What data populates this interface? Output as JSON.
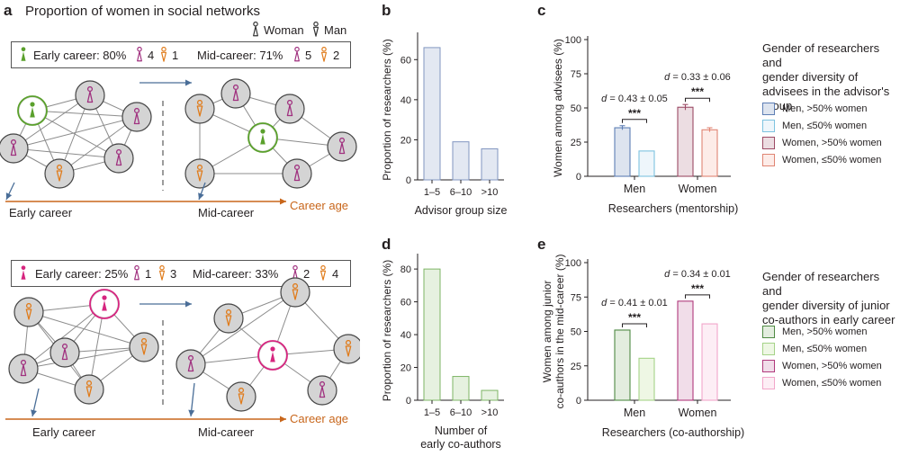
{
  "panel_a": {
    "label": "a",
    "title": "Proportion of women in social networks",
    "legend": {
      "woman": "Woman",
      "man": "Man"
    },
    "top": {
      "early_text": "Early career: 80%",
      "early_women": "4",
      "early_men": "1",
      "mid_text": "Mid-career: 71%",
      "mid_women": "5",
      "mid_men": "2"
    },
    "bottom": {
      "early_text": "Early career: 25%",
      "early_women": "1",
      "early_men": "3",
      "mid_text": "Mid-career: 33%",
      "mid_women": "2",
      "mid_men": "4"
    },
    "early_label": "Early career",
    "mid_label": "Mid-career",
    "axis_label": "Career age",
    "colors": {
      "woman": "#a0307f",
      "man": "#e07b1a",
      "focus_green": "#5aa02c",
      "focus_magenta": "#d6257f",
      "arrow": "#c8661b",
      "early_arrow": "#4a6e98"
    }
  },
  "panel_b": {
    "label": "b"
  },
  "panel_c": {
    "label": "c",
    "legend_title": [
      "Gender of researchers and",
      "gender diversity of",
      "advisees in the advisor's",
      "group"
    ],
    "annotations": [
      {
        "text": "d = 0.43 ± 0.05",
        "stars": "***"
      },
      {
        "text": "d = 0.33 ± 0.06",
        "stars": "***"
      }
    ]
  },
  "panel_d": {
    "label": "d"
  },
  "panel_e": {
    "label": "e",
    "legend_title": [
      "Gender of researchers and",
      "gender diversity of junior",
      "co-authors in early career"
    ],
    "annotations": [
      {
        "text": "d = 0.41 ± 0.01",
        "stars": "***"
      },
      {
        "text": "d = 0.34 ± 0.01",
        "stars": "***"
      }
    ]
  },
  "chart_data": [
    {
      "panel": "b",
      "type": "bar",
      "categories": [
        "1–5",
        "6–10",
        ">10"
      ],
      "values": [
        66,
        19,
        15.5
      ],
      "ylabel": "Proportion of researchers (%)",
      "xlabel": "Advisor group size",
      "ylim": [
        0,
        70
      ],
      "yticks": [
        0,
        20,
        40,
        60
      ],
      "color": "#e3e8f2",
      "edge": "#8296c0"
    },
    {
      "panel": "c",
      "type": "bar",
      "categories": [
        "Men",
        "Women"
      ],
      "series": [
        {
          "name": "Men, >50% women",
          "values": [
            35.5,
            null
          ],
          "err": [
            1.5,
            null
          ],
          "fill": "#dde4ef",
          "edge": "#5e7fb5"
        },
        {
          "name": "Men, ≤50% women",
          "values": [
            18.5,
            null
          ],
          "err": [
            0,
            null
          ],
          "fill": "#eef6fb",
          "edge": "#7ec3e0"
        },
        {
          "name": "Women, >50% women",
          "values": [
            null,
            50.5
          ],
          "err": [
            null,
            2
          ],
          "fill": "#ecdde2",
          "edge": "#9c4a65"
        },
        {
          "name": "Women, ≤50% women",
          "values": [
            null,
            34
          ],
          "err": [
            null,
            1.5
          ],
          "fill": "#fdece8",
          "edge": "#e08573"
        }
      ],
      "ylabel": "Women among advisees (%)",
      "xlabel": "Researchers (mentorship)",
      "ylim": [
        0,
        100
      ],
      "yticks": [
        0,
        25,
        50,
        75,
        100
      ]
    },
    {
      "panel": "d",
      "type": "bar",
      "categories": [
        "1–5",
        "6–10",
        ">10"
      ],
      "values": [
        80,
        14.5,
        6
      ],
      "ylabel": "Proportion of researchers (%)",
      "xlabel": [
        "Number of",
        "early co-authors"
      ],
      "ylim": [
        0,
        85
      ],
      "yticks": [
        0,
        20,
        40,
        60,
        80
      ],
      "color": "#e6f1e0",
      "edge": "#7db565"
    },
    {
      "panel": "e",
      "type": "bar",
      "categories": [
        "Men",
        "Women"
      ],
      "series": [
        {
          "name": "Men, >50% women",
          "values": [
            51,
            null
          ],
          "fill": "#e3eddf",
          "edge": "#4f8a43"
        },
        {
          "name": "Men, ≤50% women",
          "values": [
            30.5,
            null
          ],
          "fill": "#eef7e4",
          "edge": "#a5d388"
        },
        {
          "name": "Women, >50% women",
          "values": [
            null,
            72
          ],
          "fill": "#f1dde9",
          "edge": "#b03a7c"
        },
        {
          "name": "Women, ≤50% women",
          "values": [
            null,
            55.5
          ],
          "fill": "#fdeef5",
          "edge": "#f2a6ca"
        }
      ],
      "ylabel": [
        "Women among junior",
        "co-authors in the mid-career (%)"
      ],
      "xlabel": "Researchers (co-authorship)",
      "ylim": [
        0,
        100
      ],
      "yticks": [
        0,
        25,
        50,
        75,
        100
      ]
    }
  ]
}
